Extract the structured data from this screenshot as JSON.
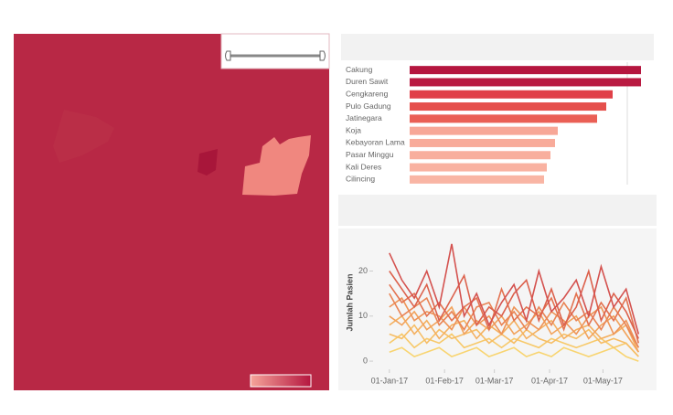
{
  "chart_data": [
    {
      "type": "bar",
      "categories": [
        "Cakung",
        "Duren Sawit",
        "Cengkareng",
        "Pulo Gadung",
        "Jatinegara",
        "Koja",
        "Kebayoran Lama",
        "Pasar Minggu",
        "Kali Deres",
        "Cilincing"
      ],
      "values": [
        253,
        253,
        222,
        215,
        205,
        162,
        159,
        154,
        150,
        147
      ],
      "colors": [
        "#b5163f",
        "#b91a41",
        "#e04048",
        "#e5504c",
        "#ea5f55",
        "#f7a797",
        "#f8ab9a",
        "#f8ae9d",
        "#f9b2a1",
        "#f9b5a4"
      ]
    },
    {
      "type": "line",
      "y_label": "Jumlah Pasien",
      "x": [
        "2017-01-01",
        "2017-01-08",
        "2017-01-15",
        "2017-01-22",
        "2017-01-29",
        "2017-02-05",
        "2017-02-12",
        "2017-02-19",
        "2017-02-26",
        "2017-03-05",
        "2017-03-12",
        "2017-03-19",
        "2017-03-26",
        "2017-04-02",
        "2017-04-09",
        "2017-04-16",
        "2017-04-23",
        "2017-04-30",
        "2017-05-07",
        "2017-05-14",
        "2017-05-21"
      ],
      "xlim": [
        "2016-12-29",
        "2017-05-27"
      ],
      "xticks": [
        {
          "value": "2017-01-01",
          "label": "01-Jan-17"
        },
        {
          "value": "2017-02-01",
          "label": "01-Feb-17"
        },
        {
          "value": "2017-03-01",
          "label": "01-Mar-17"
        },
        {
          "value": "2017-04-01",
          "label": "01-Apr-17"
        },
        {
          "value": "2017-05-01",
          "label": "01-May-17"
        }
      ],
      "ylim": [
        -1,
        27
      ],
      "yticks": [
        0,
        10,
        20
      ],
      "series": [
        {
          "color": "#d4524f",
          "values": [
            24,
            18,
            14,
            20,
            12,
            26,
            10,
            15,
            8,
            13,
            17,
            9,
            20,
            11,
            14,
            18,
            10,
            21,
            12,
            16,
            6
          ]
        },
        {
          "color": "#dc614c",
          "values": [
            20,
            16,
            12,
            17,
            9,
            14,
            19,
            8,
            12,
            10,
            15,
            18,
            9,
            16,
            8,
            12,
            20,
            9,
            15,
            11,
            5
          ]
        },
        {
          "color": "#e37250",
          "values": [
            17,
            13,
            15,
            10,
            13,
            9,
            12,
            14,
            7,
            16,
            9,
            12,
            10,
            14,
            7,
            15,
            8,
            13,
            9,
            14,
            4
          ]
        },
        {
          "color": "#e98455",
          "values": [
            15,
            10,
            12,
            14,
            8,
            11,
            7,
            12,
            13,
            8,
            11,
            7,
            12,
            8,
            13,
            9,
            11,
            7,
            12,
            8,
            3
          ]
        },
        {
          "color": "#ee9458",
          "values": [
            12,
            14,
            9,
            11,
            10,
            7,
            12,
            8,
            10,
            6,
            12,
            9,
            7,
            11,
            9,
            6,
            10,
            12,
            6,
            9,
            3
          ]
        },
        {
          "color": "#f2a35c",
          "values": [
            10,
            8,
            11,
            7,
            9,
            12,
            6,
            9,
            7,
            10,
            6,
            8,
            11,
            6,
            8,
            10,
            5,
            8,
            10,
            6,
            2
          ]
        },
        {
          "color": "#f4b060",
          "values": [
            8,
            10,
            6,
            9,
            5,
            8,
            9,
            5,
            8,
            6,
            9,
            5,
            7,
            9,
            5,
            7,
            8,
            5,
            6,
            8,
            2
          ]
        },
        {
          "color": "#f6bd65",
          "values": [
            6,
            5,
            8,
            4,
            7,
            5,
            6,
            7,
            4,
            6,
            4,
            7,
            5,
            4,
            6,
            5,
            7,
            4,
            5,
            4,
            1
          ]
        },
        {
          "color": "#f7c96a",
          "values": [
            4,
            6,
            3,
            5,
            4,
            6,
            3,
            4,
            5,
            3,
            5,
            4,
            3,
            5,
            4,
            3,
            4,
            5,
            3,
            4,
            1
          ]
        },
        {
          "color": "#f8d470",
          "values": [
            2,
            3,
            1,
            2,
            3,
            1,
            2,
            3,
            1,
            2,
            3,
            1,
            2,
            1,
            3,
            2,
            1,
            2,
            3,
            1,
            0
          ]
        }
      ]
    }
  ]
}
